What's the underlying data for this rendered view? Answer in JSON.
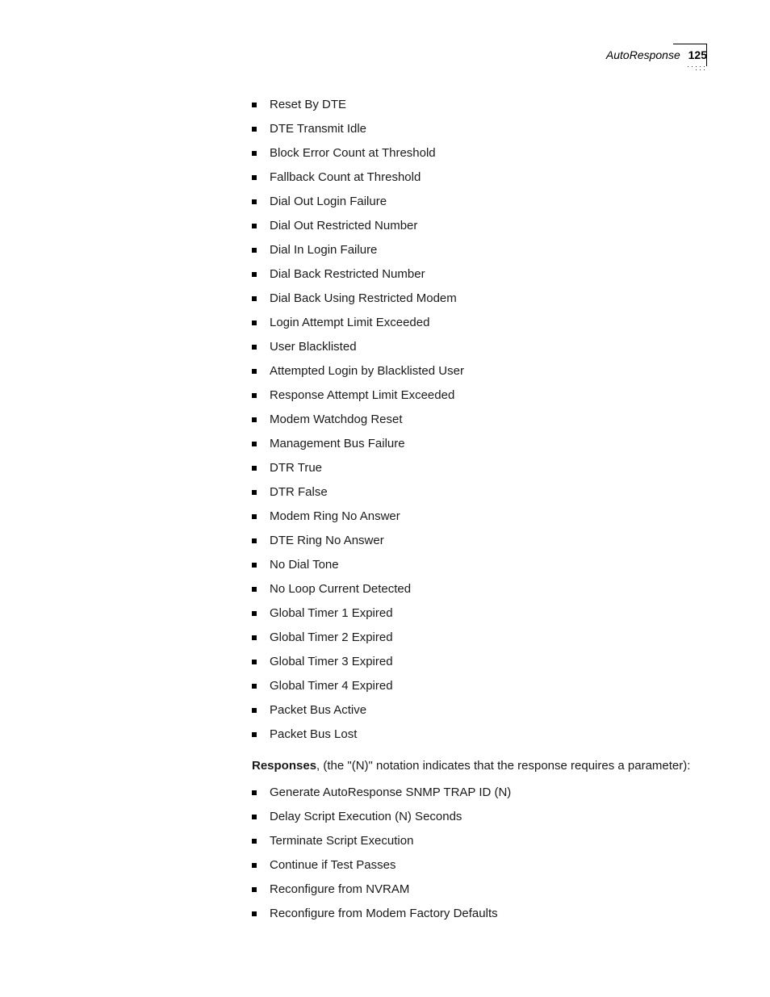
{
  "header": {
    "section": "AutoResponse",
    "page": "125"
  },
  "events": [
    "Reset By DTE",
    "DTE Transmit Idle",
    "Block Error Count at Threshold",
    "Fallback Count at Threshold",
    "Dial Out Login Failure",
    "Dial Out Restricted Number",
    "Dial In Login Failure",
    "Dial Back Restricted Number",
    "Dial Back Using Restricted Modem",
    "Login Attempt Limit Exceeded",
    "User Blacklisted",
    "Attempted Login by Blacklisted User",
    "Response Attempt Limit Exceeded",
    "Modem Watchdog Reset",
    "Management Bus Failure",
    "DTR True",
    "DTR False",
    "Modem Ring No Answer",
    "DTE Ring No Answer",
    "No Dial Tone",
    "No Loop Current Detected",
    "Global Timer 1 Expired",
    "Global Timer 2 Expired",
    "Global Timer 3 Expired",
    "Global Timer 4 Expired",
    "Packet Bus Active",
    "Packet Bus Lost"
  ],
  "responses_intro": {
    "lead": "Responses",
    "rest": ", (the \"(N)\" notation indicates that the response requires a parameter):"
  },
  "responses": [
    "Generate AutoResponse SNMP TRAP ID (N)",
    "Delay Script Execution (N) Seconds",
    "Terminate Script Execution",
    "Continue if Test Passes",
    "Reconfigure from NVRAM",
    "Reconfigure from Modem Factory Defaults"
  ],
  "style": {
    "body_bg": "#ffffff",
    "text_color": "#1a1a1a",
    "body_fontsize": 15,
    "bullet_size": 6,
    "bullet_color": "#000000",
    "line_spacing": 10
  }
}
